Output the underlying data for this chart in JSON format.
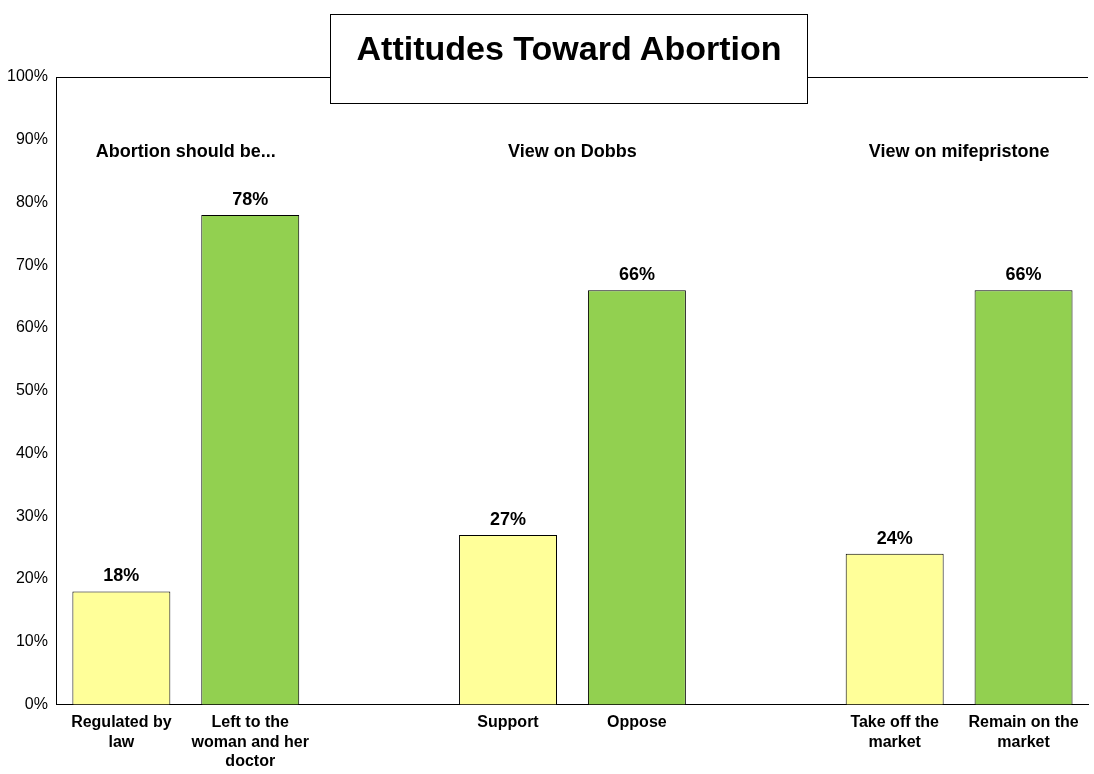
{
  "chart_data": {
    "type": "bar",
    "title": "Attitudes Toward Abortion",
    "categories": [
      "Regulated by law",
      "Left to the woman and her doctor",
      null,
      "Support",
      "Oppose",
      null,
      "Take off the market",
      "Remain on the market"
    ],
    "values": [
      18,
      78,
      null,
      27,
      66,
      null,
      24,
      66
    ],
    "colors": [
      "#ffff99",
      "#92d050",
      null,
      "#ffff99",
      "#92d050",
      null,
      "#ffff99",
      "#92d050"
    ],
    "ylim": [
      0,
      100
    ],
    "yticks": [
      {
        "value": 0,
        "label": "0%"
      },
      {
        "value": 10,
        "label": "10%"
      },
      {
        "value": 20,
        "label": "20%"
      },
      {
        "value": 30,
        "label": "30%"
      },
      {
        "value": 40,
        "label": "40%"
      },
      {
        "value": 50,
        "label": "50%"
      },
      {
        "value": 60,
        "label": "60%"
      },
      {
        "value": 70,
        "label": "70%"
      },
      {
        "value": 80,
        "label": "80%"
      },
      {
        "value": 90,
        "label": "90%"
      },
      {
        "value": 100,
        "label": "100%"
      }
    ],
    "value_labels": [
      "18%",
      "78%",
      null,
      "27%",
      "66%",
      null,
      "24%",
      "66%"
    ],
    "annotations": [
      "Abortion should be...",
      "View on Dobbs",
      "View on mifepristone"
    ],
    "grid": false,
    "legend": false
  }
}
